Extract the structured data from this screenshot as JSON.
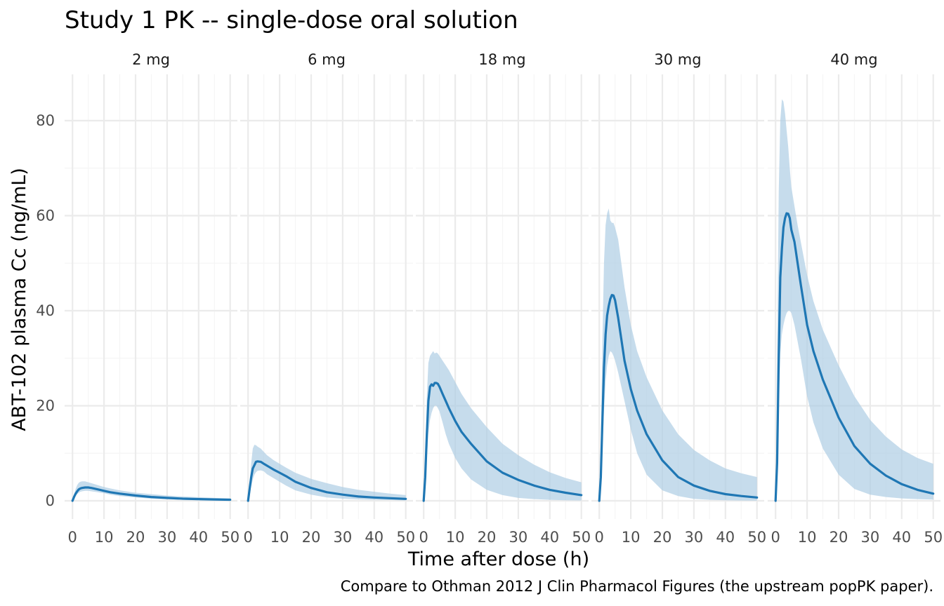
{
  "chart_data": {
    "type": "line",
    "title": "Study 1 PK -- single-dose oral solution",
    "xlabel": "Time after dose (h)",
    "ylabel": "ABT-102 plasma Cc (ng/mL)",
    "caption": "Compare to Othman 2012 J Clin Pharmacol Figures (the upstream popPK paper).",
    "xlim": [
      0,
      50
    ],
    "ylim": [
      0,
      85
    ],
    "x_ticks": [
      0,
      10,
      20,
      30,
      40,
      50
    ],
    "y_ticks": [
      0,
      20,
      40,
      60,
      80
    ],
    "grid": true,
    "colors": {
      "line": "#1f77b4",
      "ribbon": "#aecde4",
      "grid_major": "#ebebeb",
      "grid_minor": "#f5f5f5"
    },
    "facets": [
      {
        "label": "2 mg",
        "x": [
          0,
          0.5,
          1,
          1.5,
          2,
          2.5,
          3,
          4,
          5,
          6,
          8,
          10,
          12,
          15,
          20,
          25,
          30,
          35,
          40,
          45,
          50
        ],
        "median": [
          0,
          0.8,
          1.5,
          2.0,
          2.4,
          2.6,
          2.7,
          2.8,
          2.8,
          2.7,
          2.4,
          2.1,
          1.8,
          1.5,
          1.1,
          0.8,
          0.6,
          0.45,
          0.35,
          0.28,
          0.22
        ],
        "lower": [
          0,
          0.5,
          1.0,
          1.4,
          1.7,
          1.9,
          2.0,
          2.1,
          2.1,
          2.0,
          1.8,
          1.6,
          1.3,
          1.0,
          0.7,
          0.45,
          0.3,
          0.2,
          0.15,
          0.1,
          0.08
        ],
        "upper": [
          0,
          1.3,
          2.5,
          3.3,
          3.8,
          4.0,
          4.1,
          4.1,
          3.9,
          3.7,
          3.3,
          2.9,
          2.6,
          2.2,
          1.7,
          1.4,
          1.1,
          0.9,
          0.75,
          0.6,
          0.5
        ]
      },
      {
        "label": "6 mg",
        "x": [
          0,
          0.5,
          1,
          1.5,
          2,
          2.5,
          3,
          4,
          5,
          6,
          8,
          10,
          12,
          15,
          20,
          25,
          30,
          35,
          40,
          45,
          50
        ],
        "median": [
          0,
          2.5,
          5.0,
          6.8,
          7.5,
          8.2,
          8.3,
          8.2,
          7.8,
          7.4,
          6.6,
          5.9,
          5.2,
          4.0,
          2.7,
          1.8,
          1.3,
          0.9,
          0.7,
          0.55,
          0.4
        ],
        "lower": [
          0,
          1.5,
          3.0,
          4.5,
          5.5,
          6.0,
          6.3,
          6.4,
          6.2,
          5.6,
          4.8,
          4.0,
          3.2,
          2.2,
          1.3,
          0.7,
          0.45,
          0.3,
          0.2,
          0.15,
          0.1
        ],
        "upper": [
          0,
          4.0,
          8.0,
          11.0,
          11.8,
          11.7,
          11.4,
          11.0,
          10.3,
          9.6,
          8.6,
          7.8,
          7.0,
          5.9,
          4.6,
          3.7,
          2.9,
          2.3,
          1.9,
          1.5,
          1.2
        ]
      },
      {
        "label": "18 mg",
        "x": [
          0,
          0.5,
          1,
          1.5,
          2,
          2.5,
          3,
          3.5,
          4,
          4.5,
          5,
          6,
          7,
          8,
          10,
          12,
          15,
          20,
          25,
          30,
          35,
          40,
          45,
          50
        ],
        "median": [
          0,
          5,
          14,
          21,
          24.0,
          24.5,
          24.2,
          24.8,
          24.8,
          24.6,
          24.0,
          22.5,
          21.0,
          19.5,
          16.8,
          14.5,
          12.0,
          8.3,
          5.9,
          4.4,
          3.2,
          2.3,
          1.7,
          1.2
        ],
        "lower": [
          0,
          3,
          9,
          14,
          17.0,
          18.5,
          19.5,
          20.0,
          20.0,
          19.5,
          18.8,
          16.5,
          14.0,
          12.0,
          9.0,
          6.8,
          4.5,
          2.3,
          1.2,
          0.6,
          0.35,
          0.2,
          0.12,
          0.08
        ],
        "upper": [
          0,
          9,
          22,
          29,
          30.5,
          31.0,
          31.5,
          31.0,
          31.2,
          31.0,
          30.5,
          29.5,
          28.5,
          27.5,
          25.0,
          22.5,
          19.5,
          15.5,
          12.0,
          9.6,
          7.6,
          6.0,
          4.8,
          3.9
        ]
      },
      {
        "label": "30 mg",
        "x": [
          0,
          0.5,
          1,
          1.5,
          2,
          2.5,
          3,
          3.5,
          4,
          4.5,
          5,
          6,
          7,
          8,
          10,
          12,
          15,
          20,
          25,
          30,
          35,
          40,
          45,
          50
        ],
        "median": [
          0,
          5,
          17,
          28,
          35,
          39,
          41,
          42.5,
          43.3,
          43.2,
          42.2,
          38.5,
          34.0,
          29.5,
          23.5,
          19.0,
          14.0,
          8.5,
          5.0,
          3.2,
          2.1,
          1.4,
          1.0,
          0.7
        ],
        "lower": [
          0,
          3,
          11,
          19,
          25,
          28.5,
          30.5,
          31.5,
          31.2,
          30.5,
          29.5,
          27.0,
          24.0,
          21.0,
          15.0,
          10.0,
          5.5,
          2.2,
          1.0,
          0.4,
          0.2,
          0.1,
          0.06,
          0.04
        ],
        "upper": [
          0,
          12,
          34,
          50,
          58,
          60.5,
          61.5,
          59.0,
          58.5,
          58.5,
          57.5,
          55.0,
          50.0,
          45.0,
          37.0,
          31.5,
          26.0,
          19.0,
          14.0,
          10.7,
          8.5,
          6.8,
          5.8,
          5.0
        ]
      },
      {
        "label": "40 mg",
        "x": [
          0,
          0.5,
          1,
          1.5,
          2,
          2.5,
          3,
          3.5,
          4,
          4.5,
          5,
          6,
          7,
          8,
          10,
          12,
          15,
          20,
          25,
          30,
          35,
          40,
          45,
          50
        ],
        "median": [
          0,
          8,
          30,
          47,
          53,
          57.5,
          59.5,
          60.5,
          60.4,
          59.5,
          57.0,
          54.5,
          50.0,
          45.5,
          37.0,
          31.5,
          25.5,
          17.5,
          11.5,
          7.8,
          5.3,
          3.5,
          2.3,
          1.5
        ],
        "lower": [
          0,
          5,
          20,
          31,
          35.0,
          37.0,
          38.5,
          39.5,
          40.0,
          40.0,
          39.5,
          37.0,
          33.5,
          30.0,
          22.0,
          16.5,
          11.0,
          5.5,
          2.5,
          1.3,
          0.8,
          0.5,
          0.35,
          0.25
        ],
        "upper": [
          0,
          30,
          65,
          80,
          84.5,
          84.0,
          81.5,
          78.0,
          74.5,
          70.0,
          66.0,
          62.0,
          58.0,
          54.5,
          47.5,
          42.0,
          36.0,
          28.5,
          22.0,
          17.0,
          13.5,
          10.8,
          9.0,
          7.8
        ]
      }
    ]
  }
}
